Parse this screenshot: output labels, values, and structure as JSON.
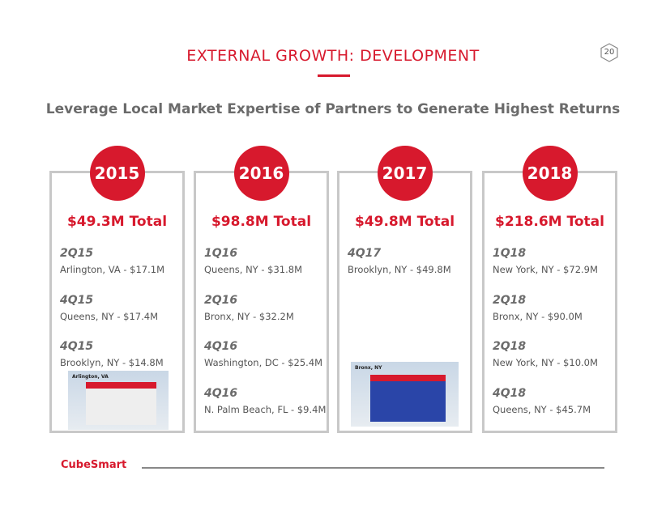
{
  "header": {
    "title": "EXTERNAL GROWTH: DEVELOPMENT",
    "page_number": "20",
    "subtitle": "Leverage Local Market Expertise of Partners to Generate Highest Returns"
  },
  "columns": [
    {
      "year": "2015",
      "total": "$49.3M Total",
      "items": [
        {
          "quarter": "2Q15",
          "location": "Arlington, VA - $17.1M"
        },
        {
          "quarter": "4Q15",
          "location": "Queens, NY - $17.4M"
        },
        {
          "quarter": "4Q15",
          "location": "Brooklyn, NY - $14.8M"
        }
      ],
      "photo_label": "Arlington, VA"
    },
    {
      "year": "2016",
      "total": "$98.8M Total",
      "items": [
        {
          "quarter": "1Q16",
          "location": "Queens, NY - $31.8M"
        },
        {
          "quarter": "2Q16",
          "location": "Bronx, NY - $32.2M"
        },
        {
          "quarter": "4Q16",
          "location": "Washington, DC - $25.4M"
        },
        {
          "quarter": "4Q16",
          "location": "N. Palm Beach, FL - $9.4M"
        }
      ]
    },
    {
      "year": "2017",
      "total": "$49.8M Total",
      "items": [
        {
          "quarter": "4Q17",
          "location": "Brooklyn, NY - $49.8M"
        }
      ],
      "photo_label": "Bronx, NY"
    },
    {
      "year": "2018",
      "total": "$218.6M Total",
      "items": [
        {
          "quarter": "1Q18",
          "location": "New York, NY - $72.9M"
        },
        {
          "quarter": "2Q18",
          "location": "Bronx, NY - $90.0M"
        },
        {
          "quarter": "2Q18",
          "location": "New York, NY - $10.0M"
        },
        {
          "quarter": "4Q18",
          "location": "Queens, NY - $45.7M"
        }
      ]
    }
  ],
  "footer": {
    "logo": "CubeSmart"
  }
}
